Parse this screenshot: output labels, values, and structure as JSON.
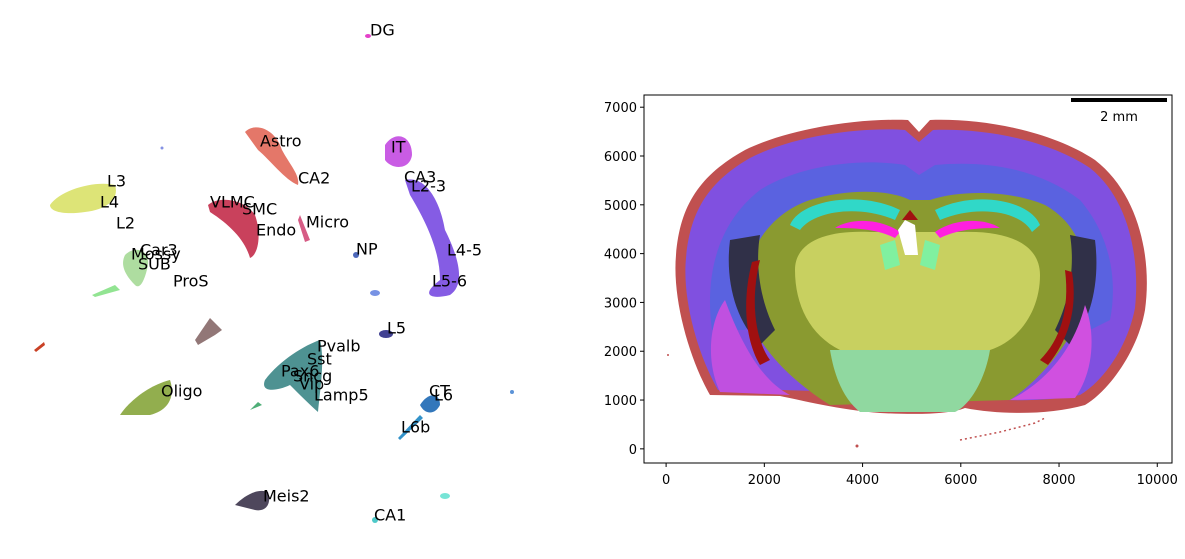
{
  "chart_data": [
    {
      "type": "scatter",
      "labels": [
        "DG",
        "Astro",
        "IT",
        "L3",
        "CA2",
        "CA3",
        "L2-3",
        "L4",
        "VLMC",
        "SMC",
        "L2",
        "Micro",
        "Endo",
        "NP",
        "Car3",
        "L4-5",
        "Mossy",
        "SUB",
        "ProS",
        "L5-6",
        "L5",
        "Pvalb",
        "Sst",
        "Pax6",
        "Sncg",
        "Vip",
        "Lamp5",
        "Oligo",
        "CT",
        "L6",
        "L6b",
        "Meis2",
        "CA1"
      ]
    },
    {
      "type": "scatter",
      "xlim": [
        -450,
        10300
      ],
      "ylim": [
        -290,
        7250
      ],
      "xticks": [
        0,
        2000,
        4000,
        6000,
        8000,
        10000
      ],
      "yticks": [
        0,
        1000,
        2000,
        3000,
        4000,
        5000,
        6000,
        7000
      ],
      "annotation": "2 mm"
    }
  ]
}
